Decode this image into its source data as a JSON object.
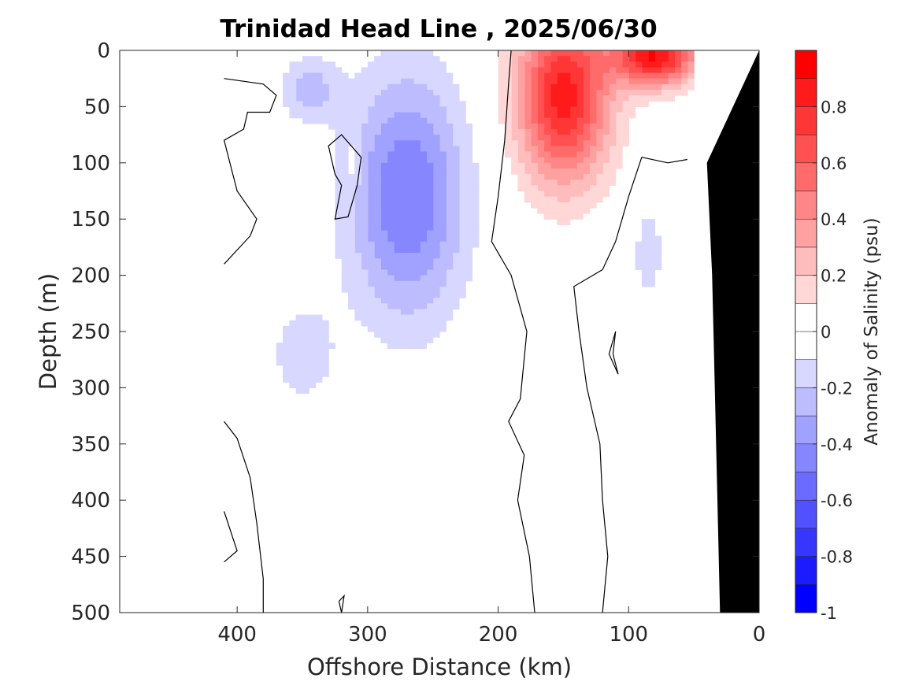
{
  "chart_data": {
    "type": "heatmap",
    "title": "Trinidad Head Line , 2025/06/30",
    "xlabel": "Offshore Distance (km)",
    "ylabel": "Depth (m)",
    "xlim": [
      490,
      0
    ],
    "ylim": [
      0,
      500
    ],
    "x_reversed": true,
    "y_reversed": true,
    "x_ticks": [
      400,
      300,
      200,
      100,
      0
    ],
    "y_ticks": [
      0,
      50,
      100,
      150,
      200,
      250,
      300,
      350,
      400,
      450,
      500
    ],
    "x_tick_labels": [
      "400",
      "300",
      "200",
      "100",
      "0"
    ],
    "y_tick_labels": [
      "0",
      "50",
      "100",
      "150",
      "200",
      "250",
      "300",
      "350",
      "400",
      "450",
      "500"
    ],
    "colorbar": {
      "label": "Anomaly of Salinity (psu)",
      "range": [
        -1,
        1
      ],
      "ticks": [
        0.8,
        0.6,
        0.4,
        0.2,
        0,
        -0.2,
        -0.4,
        -0.6,
        -0.8,
        -1
      ],
      "tick_labels": [
        "0.8",
        "0.6",
        "0.4",
        "0.2",
        "0",
        "-0.2",
        "-0.4",
        "-0.6",
        "-0.8",
        "-1"
      ],
      "levels": [
        -1,
        -0.9,
        -0.8,
        -0.7,
        -0.6,
        -0.5,
        -0.4,
        -0.3,
        -0.2,
        -0.1,
        0,
        0.1,
        0.2,
        0.3,
        0.4,
        0.5,
        0.6,
        0.7,
        0.8,
        0.9,
        1
      ]
    },
    "features": [
      {
        "kind": "positive anomaly",
        "center_km": 150,
        "center_depth_m": 40,
        "peak": 0.85,
        "extent_km": [
          190,
          110
        ],
        "extent_depth_m": [
          0,
          175
        ]
      },
      {
        "kind": "positive anomaly",
        "center_km": 80,
        "center_depth_m": 5,
        "peak": 0.9,
        "extent_km": [
          120,
          50
        ],
        "extent_depth_m": [
          0,
          60
        ]
      },
      {
        "kind": "negative anomaly",
        "center_km": 270,
        "center_depth_m": 130,
        "peak": -0.5,
        "extent_km": [
          310,
          210
        ],
        "extent_depth_m": [
          30,
          275
        ]
      },
      {
        "kind": "negative anomaly",
        "center_km": 345,
        "center_depth_m": 35,
        "peak": -0.25,
        "extent_km": [
          370,
          320
        ],
        "extent_depth_m": [
          10,
          75
        ]
      },
      {
        "kind": "negative anomaly",
        "center_km": 350,
        "center_depth_m": 270,
        "peak": -0.15,
        "extent_km": [
          380,
          315
        ],
        "extent_depth_m": [
          210,
          330
        ]
      },
      {
        "kind": "negative anomaly",
        "center_km": 85,
        "center_depth_m": 180,
        "peak": -0.15,
        "extent_km": [
          100,
          70
        ],
        "extent_depth_m": [
          120,
          240
        ]
      },
      {
        "kind": "positive anomaly",
        "center_km": 310,
        "center_depth_m": 100,
        "peak": 0.15,
        "extent_km": [
          318,
          305
        ],
        "extent_depth_m": [
          85,
          130
        ]
      }
    ],
    "bathymetry": "seafloor shown in black near 0-30 km, deepening from 0 m at 0 km to 500 m near 30 km"
  },
  "colors": {
    "positive_max": "#ff0000",
    "negative_max": "#0000ff",
    "neutral": "#ffffff",
    "seafloor": "#000000",
    "contour": "#000000"
  }
}
